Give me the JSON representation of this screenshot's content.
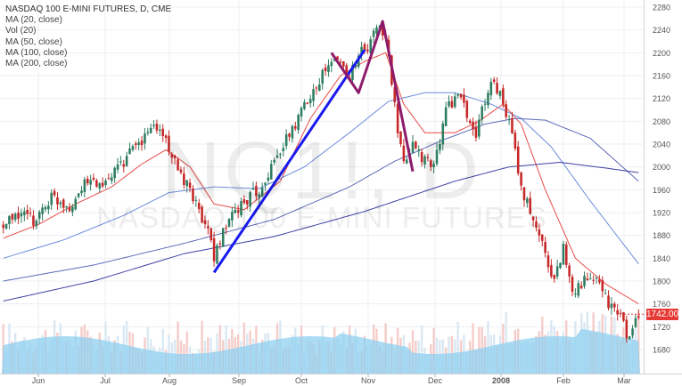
{
  "legend": {
    "title": "NASDAQ 100 E-MINI FUTURES, D, CME",
    "items": [
      "MA (20, close)",
      "Vol (20)",
      "MA (50, close)",
      "MA (100, close)",
      "MA (200, close)"
    ]
  },
  "watermark": {
    "symbol": "NQ1!, D",
    "description": "NASDAQ 100 E-MINI FUTURES"
  },
  "last_price_label": "1742.00",
  "colors": {
    "up": "#2e7d61",
    "down": "#c62828",
    "ma20": "#e53935",
    "ma50": "#5c7fd6",
    "ma100": "#4a5ab0",
    "ma200": "#2a2a9a",
    "volume_up": "#f4c7c3",
    "volume_ma": "#8fd0f0",
    "trend_blue": "#1a1aee",
    "trend_purple": "#8e1a6b",
    "grid": "#eceff2",
    "axis_text": "#555555"
  },
  "chart_data": {
    "type": "candlestick",
    "title": "NASDAQ 100 E-MINI FUTURES, D, CME",
    "ylim": [
      1650,
      2285
    ],
    "y_ticks": [
      1680,
      1720,
      1760,
      1800,
      1840,
      1880,
      1920,
      1960,
      2000,
      2040,
      2080,
      2120,
      2160,
      2200,
      2240,
      2280
    ],
    "x_ticks": [
      "Jun",
      "Jul",
      "Aug",
      "Sep",
      "Oct",
      "Nov",
      "Dec",
      "2008",
      "Feb",
      "Mar"
    ],
    "last_price": 1742,
    "grid": true,
    "price_path": [
      {
        "t": 0,
        "p": 1895
      },
      {
        "t": 6,
        "p": 1920
      },
      {
        "t": 10,
        "p": 1905
      },
      {
        "t": 16,
        "p": 1948
      },
      {
        "t": 22,
        "p": 1932
      },
      {
        "t": 28,
        "p": 1975
      },
      {
        "t": 34,
        "p": 1968
      },
      {
        "t": 40,
        "p": 2010
      },
      {
        "t": 46,
        "p": 2045
      },
      {
        "t": 50,
        "p": 2075
      },
      {
        "t": 54,
        "p": 2050
      },
      {
        "t": 58,
        "p": 1990
      },
      {
        "t": 63,
        "p": 1950
      },
      {
        "t": 67,
        "p": 1900
      },
      {
        "t": 70,
        "p": 1845
      },
      {
        "t": 74,
        "p": 1895
      },
      {
        "t": 79,
        "p": 1935
      },
      {
        "t": 85,
        "p": 1960
      },
      {
        "t": 91,
        "p": 2020
      },
      {
        "t": 97,
        "p": 2075
      },
      {
        "t": 102,
        "p": 2130
      },
      {
        "t": 107,
        "p": 2170
      },
      {
        "t": 111,
        "p": 2190
      },
      {
        "t": 115,
        "p": 2160
      },
      {
        "t": 118,
        "p": 2200
      },
      {
        "t": 121,
        "p": 2205
      },
      {
        "t": 124,
        "p": 2250
      },
      {
        "t": 127,
        "p": 2225
      },
      {
        "t": 129,
        "p": 2150
      },
      {
        "t": 131,
        "p": 2060
      },
      {
        "t": 133,
        "p": 2000
      },
      {
        "t": 136,
        "p": 2045
      },
      {
        "t": 140,
        "p": 2010
      },
      {
        "t": 143,
        "p": 2000
      },
      {
        "t": 147,
        "p": 2100
      },
      {
        "t": 151,
        "p": 2130
      },
      {
        "t": 154,
        "p": 2090
      },
      {
        "t": 157,
        "p": 2055
      },
      {
        "t": 160,
        "p": 2120
      },
      {
        "t": 163,
        "p": 2155
      },
      {
        "t": 166,
        "p": 2110
      },
      {
        "t": 169,
        "p": 2060
      },
      {
        "t": 172,
        "p": 1960
      },
      {
        "t": 176,
        "p": 1910
      },
      {
        "t": 180,
        "p": 1850
      },
      {
        "t": 183,
        "p": 1800
      },
      {
        "t": 186,
        "p": 1860
      },
      {
        "t": 189,
        "p": 1785
      },
      {
        "t": 193,
        "p": 1800
      },
      {
        "t": 197,
        "p": 1800
      },
      {
        "t": 201,
        "p": 1760
      },
      {
        "t": 205,
        "p": 1740
      },
      {
        "t": 208,
        "p": 1695
      },
      {
        "t": 211,
        "p": 1742
      }
    ],
    "series": [
      {
        "name": "MA (20, close)",
        "points": [
          {
            "t": 0,
            "p": 1875
          },
          {
            "t": 12,
            "p": 1900
          },
          {
            "t": 24,
            "p": 1935
          },
          {
            "t": 36,
            "p": 1965
          },
          {
            "t": 46,
            "p": 2005
          },
          {
            "t": 54,
            "p": 2030
          },
          {
            "t": 62,
            "p": 2000
          },
          {
            "t": 70,
            "p": 1935
          },
          {
            "t": 80,
            "p": 1925
          },
          {
            "t": 92,
            "p": 1975
          },
          {
            "t": 102,
            "p": 2085
          },
          {
            "t": 112,
            "p": 2160
          },
          {
            "t": 120,
            "p": 2185
          },
          {
            "t": 127,
            "p": 2200
          },
          {
            "t": 133,
            "p": 2110
          },
          {
            "t": 140,
            "p": 2060
          },
          {
            "t": 150,
            "p": 2060
          },
          {
            "t": 158,
            "p": 2080
          },
          {
            "t": 166,
            "p": 2110
          },
          {
            "t": 172,
            "p": 2075
          },
          {
            "t": 180,
            "p": 1960
          },
          {
            "t": 190,
            "p": 1840
          },
          {
            "t": 200,
            "p": 1795
          },
          {
            "t": 211,
            "p": 1760
          }
        ]
      },
      {
        "name": "MA (50, close)",
        "points": [
          {
            "t": 0,
            "p": 1840
          },
          {
            "t": 20,
            "p": 1872
          },
          {
            "t": 40,
            "p": 1915
          },
          {
            "t": 55,
            "p": 1955
          },
          {
            "t": 70,
            "p": 1965
          },
          {
            "t": 85,
            "p": 1962
          },
          {
            "t": 100,
            "p": 2000
          },
          {
            "t": 115,
            "p": 2060
          },
          {
            "t": 128,
            "p": 2115
          },
          {
            "t": 140,
            "p": 2130
          },
          {
            "t": 150,
            "p": 2130
          },
          {
            "t": 162,
            "p": 2110
          },
          {
            "t": 172,
            "p": 2085
          },
          {
            "t": 182,
            "p": 2035
          },
          {
            "t": 195,
            "p": 1940
          },
          {
            "t": 211,
            "p": 1830
          }
        ]
      },
      {
        "name": "MA (100, close)",
        "points": [
          {
            "t": 0,
            "p": 1800
          },
          {
            "t": 30,
            "p": 1828
          },
          {
            "t": 60,
            "p": 1866
          },
          {
            "t": 90,
            "p": 1908
          },
          {
            "t": 115,
            "p": 1965
          },
          {
            "t": 130,
            "p": 2010
          },
          {
            "t": 145,
            "p": 2045
          },
          {
            "t": 160,
            "p": 2075
          },
          {
            "t": 170,
            "p": 2085
          },
          {
            "t": 180,
            "p": 2082
          },
          {
            "t": 195,
            "p": 2050
          },
          {
            "t": 211,
            "p": 1975
          }
        ]
      },
      {
        "name": "MA (200, close)",
        "points": [
          {
            "t": 0,
            "p": 1765
          },
          {
            "t": 30,
            "p": 1800
          },
          {
            "t": 60,
            "p": 1848
          },
          {
            "t": 90,
            "p": 1878
          },
          {
            "t": 120,
            "p": 1922
          },
          {
            "t": 150,
            "p": 1975
          },
          {
            "t": 168,
            "p": 2000
          },
          {
            "t": 185,
            "p": 2008
          },
          {
            "t": 200,
            "p": 1998
          },
          {
            "t": 211,
            "p": 1990
          }
        ]
      }
    ],
    "trendlines": [
      {
        "name": "blue-trendline",
        "color": "trend_blue",
        "points": [
          {
            "t": 70,
            "p": 1815
          },
          {
            "t": 120,
            "p": 2205
          }
        ]
      },
      {
        "name": "purple-pattern",
        "color": "trend_purple",
        "points": [
          {
            "t": 109,
            "p": 2200
          },
          {
            "t": 118,
            "p": 2130
          },
          {
            "t": 126,
            "p": 2255
          },
          {
            "t": 136,
            "p": 1992
          }
        ]
      }
    ]
  }
}
